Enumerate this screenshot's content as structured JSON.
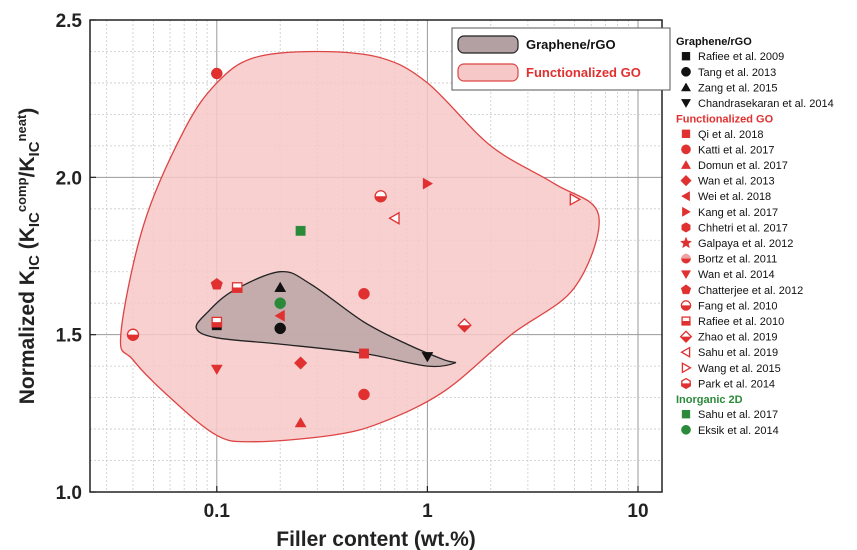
{
  "chart_data": {
    "type": "scatter",
    "xlabel": "Filler content (wt.%)",
    "ylabel": {
      "main": "Normalized K",
      "sub1": "IC",
      "open": " (K",
      "sub2": "IC",
      "sup2": "comp",
      "slash": "/K",
      "sub3": "IC",
      "sup3": "neat",
      "close": ")"
    },
    "x_scale": "log",
    "xlim": [
      0.025,
      13
    ],
    "ylim": [
      1.0,
      2.5
    ],
    "x_ticks": [
      {
        "v": 0.1,
        "label": "0.1"
      },
      {
        "v": 1,
        "label": "1"
      },
      {
        "v": 10,
        "label": "10"
      }
    ],
    "y_ticks": [
      {
        "v": 1.0,
        "label": "1.0"
      },
      {
        "v": 1.5,
        "label": "1.5"
      },
      {
        "v": 2.0,
        "label": "2.0"
      },
      {
        "v": 2.5,
        "label": "2.5"
      }
    ],
    "grid": true,
    "regions": [
      {
        "name": "Functionalized GO",
        "fill": "#f7c8c8",
        "stroke": "#dd4444",
        "outline": [
          [
            0.035,
            1.5
          ],
          [
            0.045,
            1.85
          ],
          [
            0.07,
            2.15
          ],
          [
            0.1,
            2.3
          ],
          [
            0.15,
            2.38
          ],
          [
            0.3,
            2.4
          ],
          [
            0.6,
            2.38
          ],
          [
            1,
            2.3
          ],
          [
            2,
            2.1
          ],
          [
            4,
            1.98
          ],
          [
            6.5,
            1.88
          ],
          [
            5,
            1.65
          ],
          [
            2.5,
            1.5
          ],
          [
            1.2,
            1.32
          ],
          [
            0.6,
            1.22
          ],
          [
            0.35,
            1.18
          ],
          [
            0.15,
            1.16
          ],
          [
            0.1,
            1.18
          ],
          [
            0.06,
            1.3
          ],
          [
            0.04,
            1.42
          ]
        ]
      },
      {
        "name": "Graphene/rGO",
        "fill": "#b3a0a2",
        "stroke": "#222222",
        "outline": [
          [
            0.08,
            1.52
          ],
          [
            0.09,
            1.57
          ],
          [
            0.12,
            1.64
          ],
          [
            0.2,
            1.7
          ],
          [
            0.28,
            1.66
          ],
          [
            0.5,
            1.54
          ],
          [
            0.8,
            1.47
          ],
          [
            1.2,
            1.42
          ],
          [
            1.35,
            1.41
          ],
          [
            1.0,
            1.4
          ],
          [
            0.5,
            1.44
          ],
          [
            0.2,
            1.47
          ],
          [
            0.1,
            1.49
          ]
        ]
      }
    ],
    "groups": [
      {
        "name": "Graphene/rGO",
        "color": "#111111",
        "series": [
          {
            "name": "Rafiee et al. 2009",
            "marker": "square",
            "points": [
              [
                0.1,
                1.53
              ]
            ]
          },
          {
            "name": "Tang et al. 2013",
            "marker": "circle",
            "points": [
              [
                0.2,
                1.52
              ]
            ]
          },
          {
            "name": "Zang et al. 2015",
            "marker": "triangle-up",
            "points": [
              [
                0.2,
                1.65
              ]
            ]
          },
          {
            "name": "Chandrasekaran et al. 2014",
            "marker": "triangle-down",
            "points": [
              [
                1.0,
                1.43
              ]
            ]
          }
        ]
      },
      {
        "name": "Functionalized GO",
        "color": "#e03030",
        "series": [
          {
            "name": "Qi et al. 2018",
            "marker": "square",
            "points": [
              [
                0.5,
                1.44
              ]
            ]
          },
          {
            "name": "Katti et al. 2017",
            "marker": "circle",
            "points": [
              [
                0.1,
                2.33
              ],
              [
                0.5,
                1.63
              ],
              [
                0.5,
                1.31
              ]
            ]
          },
          {
            "name": "Domun et al. 2017",
            "marker": "triangle-up",
            "points": [
              [
                0.25,
                1.22
              ]
            ]
          },
          {
            "name": "Wan et al. 2013",
            "marker": "diamond",
            "points": [
              [
                0.25,
                1.41
              ]
            ]
          },
          {
            "name": "Wei et al. 2018",
            "marker": "triangle-left",
            "points": [
              [
                0.2,
                1.56
              ]
            ]
          },
          {
            "name": "Kang et al. 2017",
            "marker": "triangle-right",
            "points": [
              [
                1.0,
                1.98
              ]
            ]
          },
          {
            "name": "Chhetri et al. 2017",
            "marker": "hexagon",
            "points": []
          },
          {
            "name": "Galpaya et al. 2012",
            "marker": "star",
            "points": []
          },
          {
            "name": "Bortz et al. 2011",
            "marker": "circle-half",
            "points": []
          },
          {
            "name": "Wan et al. 2014",
            "marker": "triangle-down",
            "points": [
              [
                0.1,
                1.39
              ]
            ]
          },
          {
            "name": "Chatterjee et al. 2012",
            "marker": "pentagon",
            "points": [
              [
                0.1,
                1.66
              ]
            ]
          },
          {
            "name": "Fang et al. 2010",
            "marker": "circle-open-half",
            "points": [
              [
                0.04,
                1.5
              ],
              [
                0.6,
                1.94
              ]
            ]
          },
          {
            "name": "Rafiee et al. 2010",
            "marker": "square-open-half",
            "points": [
              [
                0.125,
                1.65
              ],
              [
                0.1,
                1.54
              ]
            ]
          },
          {
            "name": "Zhao et al. 2019",
            "marker": "diamond-open-half",
            "points": [
              [
                1.5,
                1.53
              ]
            ]
          },
          {
            "name": "Sahu et al. 2019",
            "marker": "triangle-left-open",
            "points": [
              [
                0.7,
                1.87
              ]
            ]
          },
          {
            "name": "Wang et al. 2015",
            "marker": "triangle-right-open",
            "points": [
              [
                5.0,
                1.93
              ]
            ]
          },
          {
            "name": "Park et al. 2014",
            "marker": "hexagon-open-half",
            "points": []
          }
        ]
      },
      {
        "name": "Inorganic 2D",
        "color": "#2a8a3a",
        "series": [
          {
            "name": "Sahu et al. 2017",
            "marker": "square",
            "points": [
              [
                0.25,
                1.83
              ]
            ]
          },
          {
            "name": "Eksik et al. 2014",
            "marker": "circle",
            "points": [
              [
                0.2,
                1.6
              ]
            ]
          }
        ]
      }
    ],
    "box_legend": [
      {
        "label": "Graphene/rGO",
        "fill": "#b3a0a2",
        "stroke": "#222222",
        "text_color": "#111111"
      },
      {
        "label": "Functionalized GO",
        "fill": "#f7c8c8",
        "stroke": "#dd4444",
        "text_color": "#e03030"
      }
    ]
  }
}
